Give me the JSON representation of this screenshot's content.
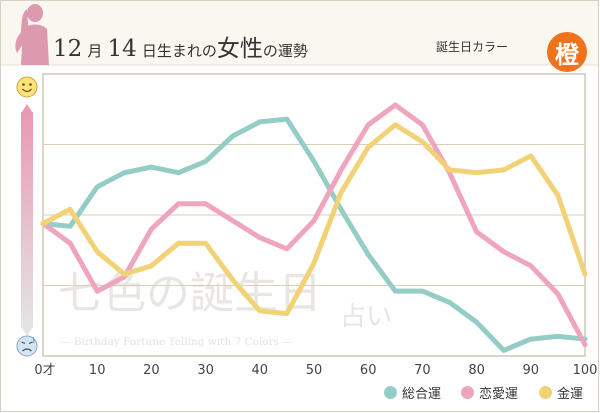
{
  "header": {
    "month": "12",
    "month_unit": "月",
    "day": "14",
    "day_unit": "日生まれの",
    "woman_char": "女性",
    "suffix": "の運勢",
    "birthday_color_label": "誕生日カラー",
    "birthday_color_char": "橙",
    "birthday_color_hex": "#f0721c"
  },
  "watermark": {
    "main": "七色の誕生日",
    "sub": "占い",
    "en": "— Birthday Fortune Telling with 7 Colors —"
  },
  "icons": {
    "top": "happy-face-icon",
    "bottom": "sad-face-icon"
  },
  "legend": [
    {
      "label": "総合運",
      "color": "#94cdc6"
    },
    {
      "label": "恋愛運",
      "color": "#efa5be"
    },
    {
      "label": "金運",
      "color": "#f2d277"
    }
  ],
  "chart_data": {
    "type": "line",
    "title": "12月14日生まれの女性の運勢",
    "xlabel": "",
    "ylabel": "",
    "x_unit": "才",
    "xlim": [
      0,
      100
    ],
    "ylim": [
      0,
      100
    ],
    "x_ticks": [
      0,
      10,
      20,
      30,
      40,
      50,
      60,
      70,
      80,
      90,
      100
    ],
    "x_tick_labels": [
      "0才",
      "10",
      "20",
      "30",
      "40",
      "50",
      "60",
      "70",
      "80",
      "90",
      "100"
    ],
    "series": [
      {
        "name": "総合運",
        "color": "#94cdc6",
        "x": [
          0,
          5,
          10,
          15,
          20,
          25,
          30,
          35,
          40,
          45,
          50,
          55,
          60,
          65,
          70,
          75,
          80,
          85,
          90,
          95,
          100
        ],
        "values": [
          47,
          46,
          60,
          65,
          67,
          65,
          69,
          78,
          83,
          84,
          69,
          52,
          36,
          23,
          23,
          19,
          12,
          2,
          6,
          7,
          6
        ]
      },
      {
        "name": "恋愛運",
        "color": "#efa5be",
        "x": [
          0,
          5,
          10,
          15,
          20,
          25,
          30,
          35,
          40,
          45,
          50,
          55,
          60,
          65,
          70,
          75,
          80,
          85,
          90,
          95,
          100
        ],
        "values": [
          47,
          40,
          23,
          28,
          45,
          54,
          54,
          48,
          42,
          38,
          48,
          66,
          82,
          89,
          82,
          65,
          44,
          37,
          32,
          22,
          4
        ]
      },
      {
        "name": "金運",
        "color": "#f2d277",
        "x": [
          0,
          5,
          10,
          15,
          20,
          25,
          30,
          35,
          40,
          45,
          50,
          55,
          60,
          65,
          70,
          75,
          80,
          85,
          90,
          95,
          100
        ],
        "values": [
          47,
          52,
          37,
          29,
          32,
          40,
          40,
          27,
          16,
          15,
          33,
          58,
          74,
          82,
          76,
          66,
          65,
          66,
          71,
          57,
          29
        ]
      }
    ]
  }
}
